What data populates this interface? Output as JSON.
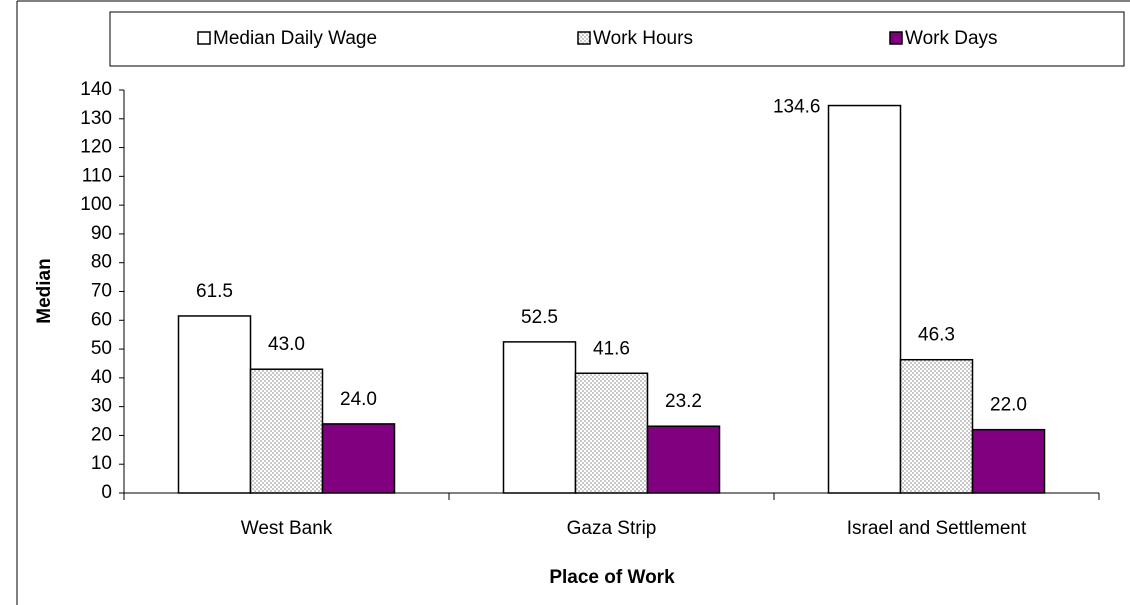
{
  "chart_data": {
    "type": "bar",
    "x_label": "Place of Work",
    "y_label": "Median",
    "categories": [
      "West Bank",
      "Gaza Strip",
      "Israel and Settlement"
    ],
    "series": [
      {
        "name": "Median Daily Wage",
        "color": "#ffffff",
        "values": [
          61.5,
          52.5,
          134.6
        ],
        "value_labels": [
          "61.5",
          "52.5",
          "134.6"
        ]
      },
      {
        "name": "Work Hours",
        "color": "#c8c8c8",
        "hatch": true,
        "values": [
          43.0,
          41.6,
          46.3
        ],
        "value_labels": [
          "43.0",
          "41.6",
          "46.3"
        ]
      },
      {
        "name": "Work Days",
        "color": "#800080",
        "values": [
          24.0,
          23.2,
          22.0
        ],
        "value_labels": [
          "24.0",
          "23.2",
          "22.0"
        ]
      }
    ],
    "ylim": [
      0,
      140
    ],
    "yticks": [
      0,
      10,
      20,
      30,
      40,
      50,
      60,
      70,
      80,
      90,
      100,
      110,
      120,
      130,
      140
    ],
    "legend": "top"
  }
}
